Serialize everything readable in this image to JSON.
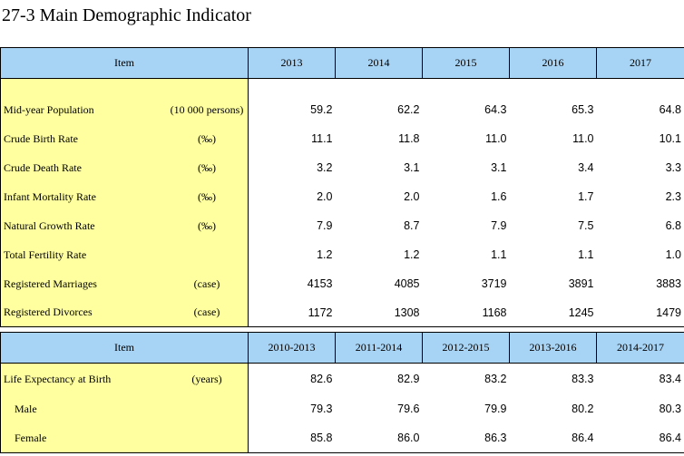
{
  "title": "27-3  Main Demographic Indicator",
  "table1": {
    "header": [
      "Item",
      "2013",
      "2014",
      "2015",
      "2016",
      "2017"
    ],
    "rows": [
      {
        "label": "Mid-year Population",
        "unit": "(10 000 persons)",
        "values": [
          "59.2",
          "62.2",
          "64.3",
          "65.3",
          "64.8"
        ]
      },
      {
        "label": "Crude Birth Rate",
        "unit": "(‰)",
        "values": [
          "11.1",
          "11.8",
          "11.0",
          "11.0",
          "10.1"
        ]
      },
      {
        "label": "Crude Death Rate",
        "unit": "(‰)",
        "values": [
          "3.2",
          "3.1",
          "3.1",
          "3.4",
          "3.3"
        ]
      },
      {
        "label": "Infant Mortality Rate",
        "unit": "(‰)",
        "values": [
          "2.0",
          "2.0",
          "1.6",
          "1.7",
          "2.3"
        ]
      },
      {
        "label": "Natural Growth Rate",
        "unit": "(‰)",
        "values": [
          "7.9",
          "8.7",
          "7.9",
          "7.5",
          "6.8"
        ]
      },
      {
        "label": "Total Fertility Rate",
        "unit": "",
        "values": [
          "1.2",
          "1.2",
          "1.1",
          "1.1",
          "1.0"
        ]
      },
      {
        "label": "Registered Marriages",
        "unit": "(case)",
        "values": [
          "4153",
          "4085",
          "3719",
          "3891",
          "3883"
        ]
      },
      {
        "label": "Registered Divorces",
        "unit": "(case)",
        "values": [
          "1172",
          "1308",
          "1168",
          "1245",
          "1479"
        ]
      }
    ]
  },
  "table2": {
    "header": [
      "Item",
      "2010-2013",
      "2011-2014",
      "2012-2015",
      "2013-2016",
      "2014-2017"
    ],
    "rows": [
      {
        "label": "Life Expectancy at Birth",
        "unit": "(years)",
        "values": [
          "82.6",
          "82.9",
          "83.2",
          "83.3",
          "83.4"
        ]
      },
      {
        "label": "Male",
        "unit": "",
        "values": [
          "79.3",
          "79.6",
          "79.9",
          "80.2",
          "80.3"
        ]
      },
      {
        "label": "Female",
        "unit": "",
        "values": [
          "85.8",
          "86.0",
          "86.3",
          "86.4",
          "86.4"
        ]
      }
    ]
  }
}
